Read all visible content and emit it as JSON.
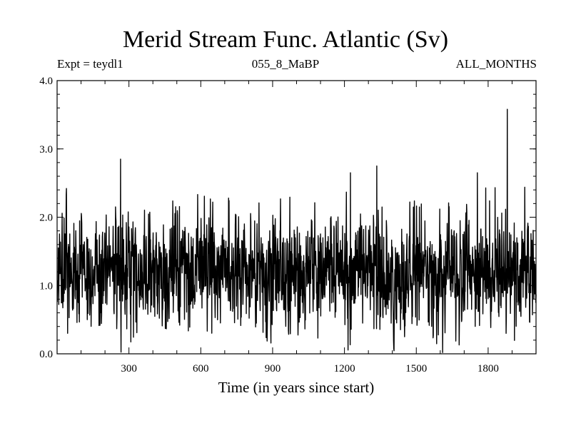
{
  "chart_data": {
    "type": "line",
    "title": "Merid Stream Func. Atlantic (Sv)",
    "subtitle_left": "Expt = teydl1",
    "subtitle_center": "055_8_MaBP",
    "subtitle_right": "ALL_MONTHS",
    "xlabel": "Time (in years since start)",
    "ylabel": "",
    "xlim": [
      0,
      2000
    ],
    "ylim": [
      0.0,
      4.0
    ],
    "xticks": [
      300,
      600,
      900,
      1200,
      1500,
      1800
    ],
    "yticks": [
      "0.0",
      "1.0",
      "2.0",
      "3.0",
      "4.0"
    ],
    "grid": false,
    "series": [
      {
        "color": "#000000",
        "x_start": 1,
        "x_step": 1,
        "mean": 1.2,
        "stdev": 0.42,
        "min": 0.0,
        "max": 3.58,
        "notable_peaks": [
          {
            "x": 265,
            "y": 2.85
          },
          {
            "x": 1335,
            "y": 2.75
          },
          {
            "x": 1225,
            "y": 2.65
          },
          {
            "x": 1755,
            "y": 2.65
          },
          {
            "x": 1880,
            "y": 3.58
          }
        ]
      }
    ]
  }
}
